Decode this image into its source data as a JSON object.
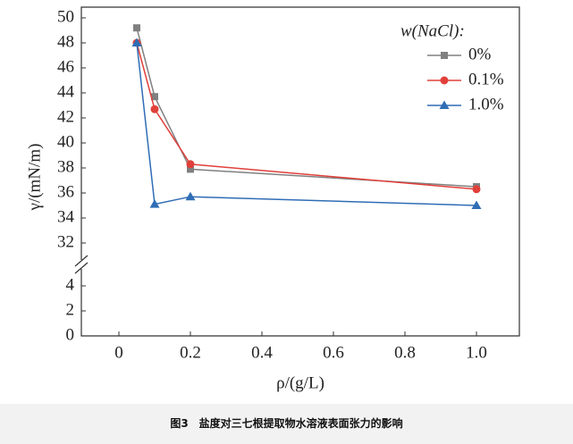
{
  "chart_data": {
    "type": "line",
    "x_label": "ρ/(g/L)",
    "y_label": "γ/(mN/m)",
    "legend_title": "w(NaCl):",
    "x": [
      0.05,
      0.1,
      0.2,
      1.0
    ],
    "series": [
      {
        "name": "0%",
        "color": "#808080",
        "marker": "square",
        "values": [
          49.2,
          43.7,
          37.9,
          36.5
        ]
      },
      {
        "name": "0.1%",
        "color": "#e0403a",
        "marker": "circle",
        "values": [
          48.0,
          42.7,
          38.3,
          36.3
        ]
      },
      {
        "name": "1.0%",
        "color": "#2f6db5",
        "marker": "triangle",
        "values": [
          48.0,
          35.1,
          35.7,
          35.0
        ]
      }
    ],
    "xlim": [
      -0.105,
      1.12
    ],
    "ylim": [
      0,
      50.9
    ],
    "y_break": [
      5,
      31
    ],
    "xticks": [
      0,
      0.2,
      0.4,
      0.6,
      0.8,
      {
        "value": 1,
        "label": "1.0"
      }
    ],
    "yticks": [
      0,
      2,
      4,
      32,
      34,
      36,
      38,
      40,
      42,
      44,
      46,
      48,
      50
    ],
    "legend": "upper right",
    "caption": "图3　盐度对三七根提取物水溶液表面张力的影响"
  }
}
